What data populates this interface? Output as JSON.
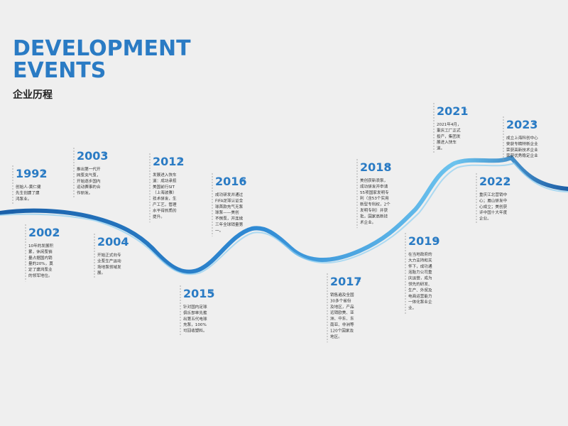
{
  "header": {
    "title_lines": [
      "DEVELOPMENT",
      "EVENTS"
    ],
    "subtitle": "企业历程"
  },
  "events": [
    {
      "year": "1992",
      "suffix": "年",
      "lines": [
        "创始人-黄仁健",
        "先生创建了建",
        "鸿泵业。"
      ]
    },
    {
      "year": "2002",
      "suffix": "年",
      "lines": [
        "10年的发展积",
        "累，休闲泵销",
        "量占据国内销",
        "量的20%，奠",
        "定了建鸿泵业",
        "的领军地位。"
      ]
    },
    {
      "year": "2003",
      "suffix": "年",
      "lines": [
        "推出第一代开",
        "网泵充气泵，",
        "开始逐步国内",
        "运动赛事的合",
        "作研发。"
      ]
    },
    {
      "year": "2004",
      "suffix": "年",
      "lines": [
        "开始正式向专",
        "业泵生产运动",
        "场地泵领域发",
        "展。"
      ]
    },
    {
      "year": "2012",
      "suffix": "年",
      "lines": [
        "发展进入快车",
        "道：成功承担",
        "美国前行SIT",
        "（上海波雅）",
        "技术研发，生",
        "产工艺，管理",
        "水平得到质的",
        "提升。"
      ]
    },
    {
      "year": "2015",
      "suffix": "年",
      "lines": [
        "针对国内足球",
        "俱乐部率先推",
        "出第五代电球",
        "充泵，100%",
        "可回收塑料。"
      ]
    },
    {
      "year": "2016",
      "suffix": "年",
      "lines": [
        "成功研发并通过",
        "FIFA足球认证全",
        "球首款充气无泵",
        "球泵——美创",
        "不倒泵，并连续",
        "三年全球销量第",
        "一。"
      ]
    },
    {
      "year": "2017",
      "suffix": "年",
      "lines": [
        "销售遍及全国",
        "30多个省份",
        "及地区，产品",
        "远销欧美、亚",
        "洲、中东、东",
        "南亚、非洲等",
        "120个国家及",
        "地区。"
      ]
    },
    {
      "year": "2018",
      "suffix": "年",
      "lines": [
        "美创获新浪泵，",
        "成功研发并申请",
        "55项国家发明专",
        "利（含53个实用",
        "新型专利权，2个",
        "发明专利）并获",
        "批，国家高新技",
        "术企业。"
      ]
    },
    {
      "year": "2019",
      "suffix": "年",
      "lines": [
        "在当地政府的",
        "大力支持和关",
        "怀下，成功通",
        "泡胎力公司重",
        "庆运营，成为",
        "领先的研发、",
        "生产、外贸及",
        "电商运营能力",
        "一体化泵业企",
        "业。"
      ]
    },
    {
      "year": "2021",
      "suffix": "年",
      "lines": [
        "2021年4月，",
        "重庆工厂正式",
        "投产，集团发",
        "展进入快车",
        "道。"
      ]
    },
    {
      "year": "2022",
      "suffix": "年",
      "lines": [
        "重庆江北营销中",
        "心；眉山研发中",
        "心成立；美创获",
        "评中国十大年度",
        "企业。"
      ]
    },
    {
      "year": "2023",
      "suffix": "年",
      "lines": [
        "成立上海科创中心",
        "荣获专精特新企业",
        "荣获高新技术企业",
        "荣获优秀稳定企业"
      ]
    }
  ]
}
